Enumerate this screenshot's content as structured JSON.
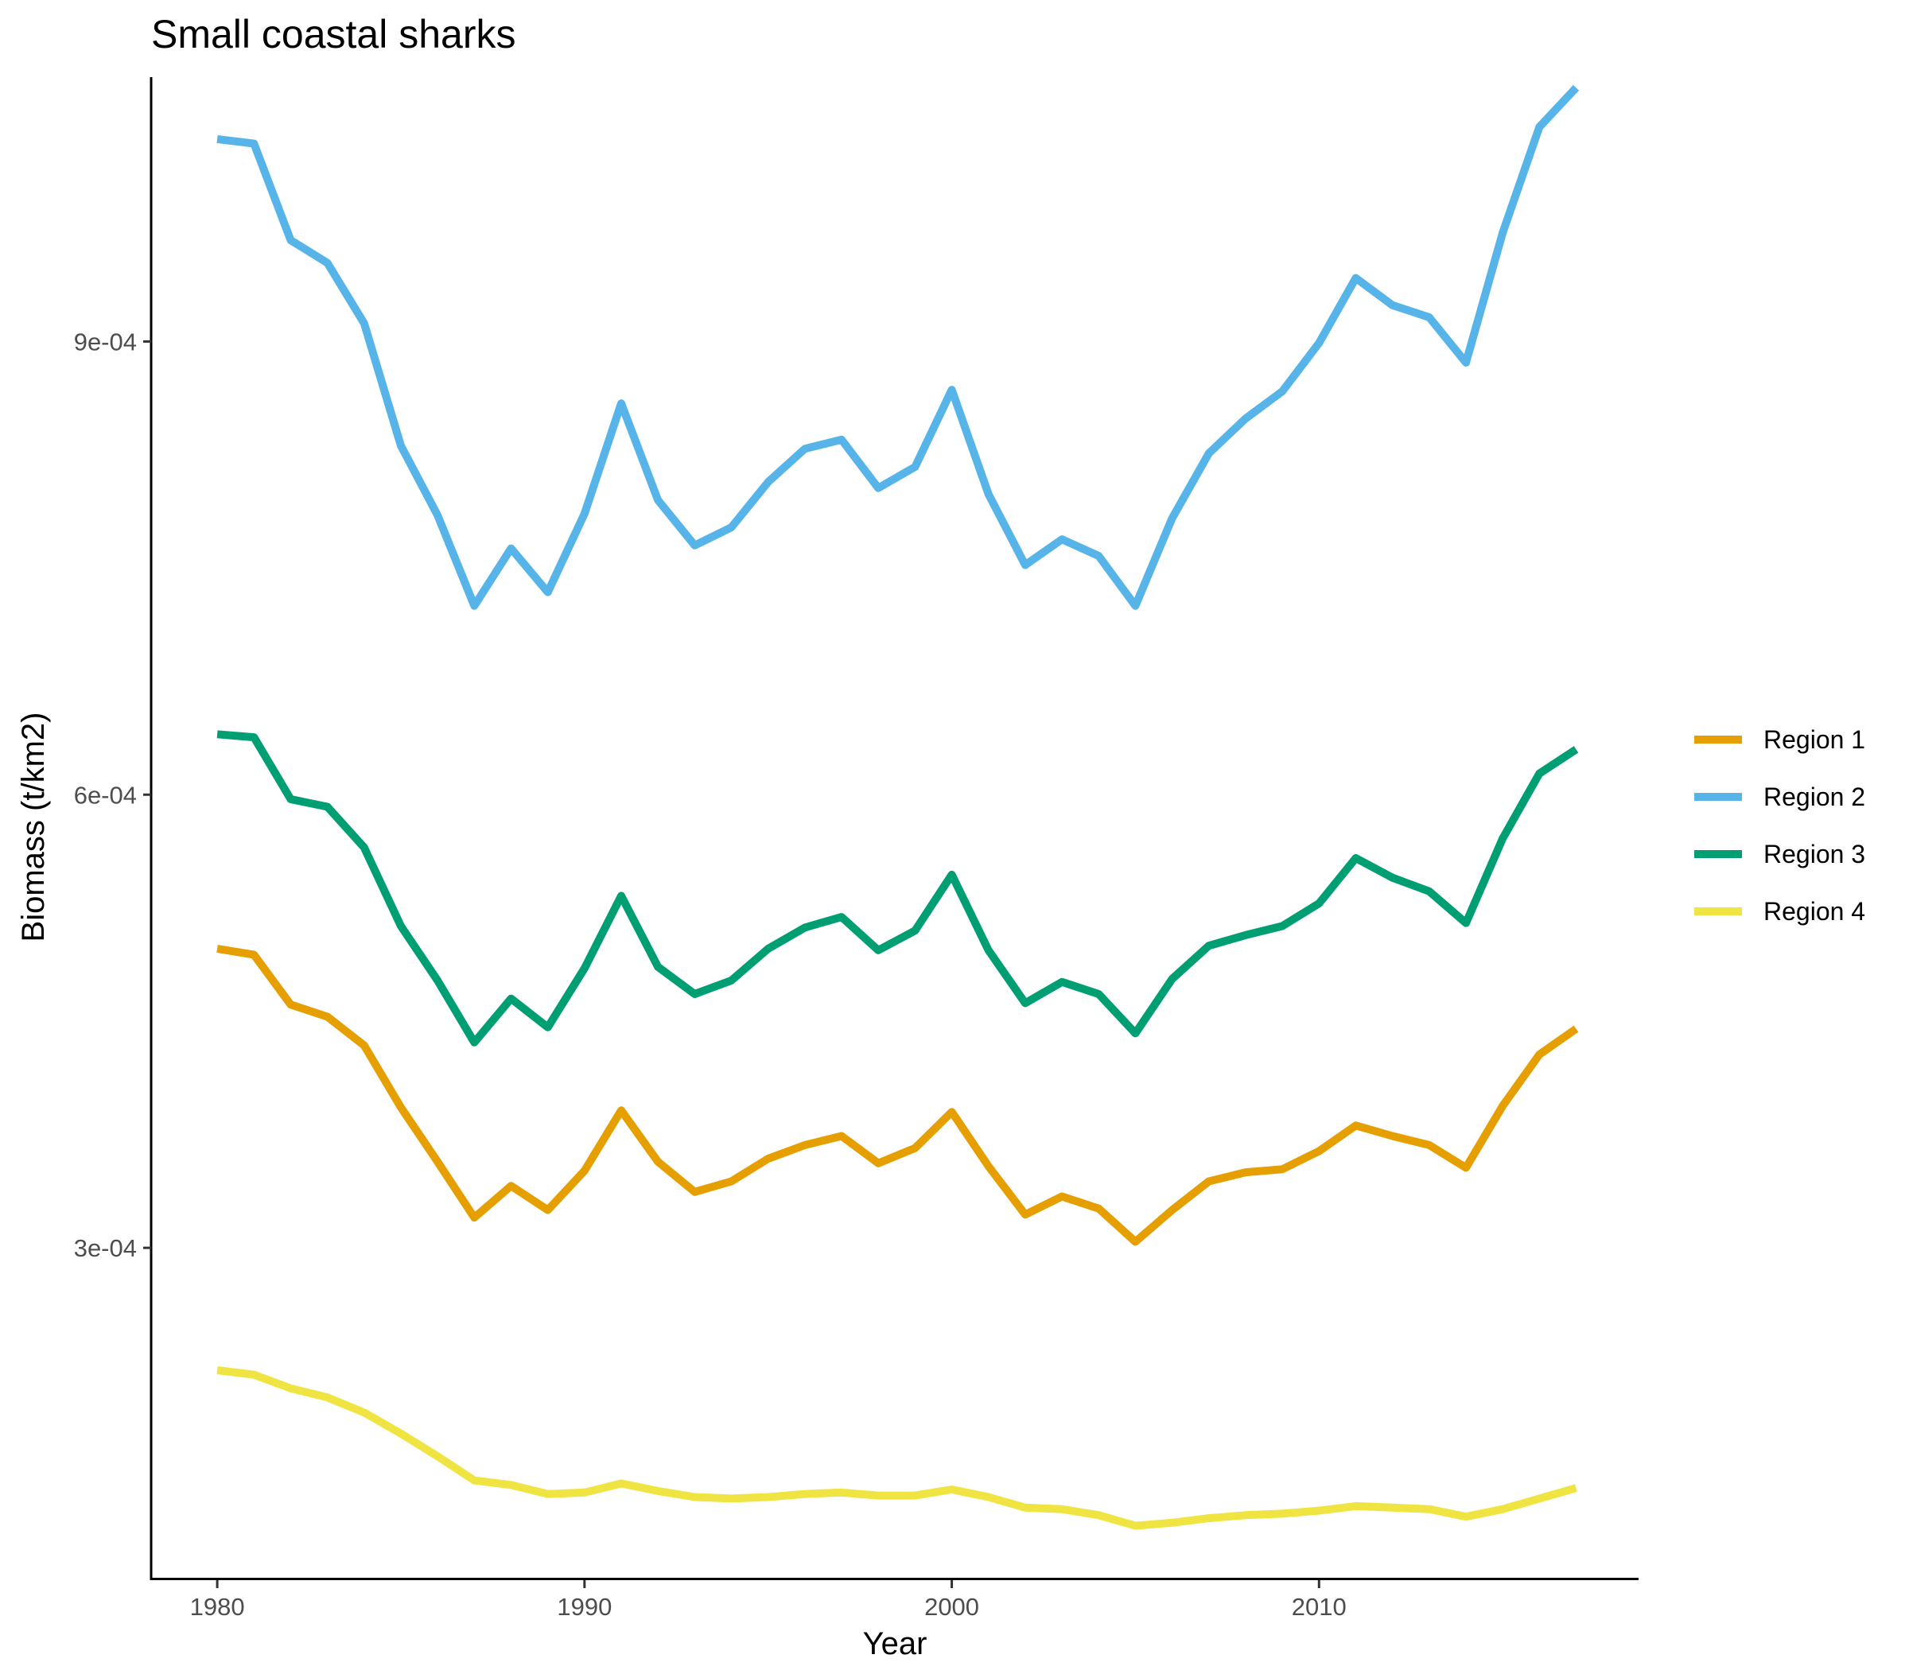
{
  "chart_data": {
    "type": "line",
    "title": "Small coastal sharks",
    "xlabel": "Year",
    "ylabel": "Biomass (t/km2)",
    "xlim": [
      1978.2,
      2018.7
    ],
    "ylim": [
      8e-05,
      0.001075
    ],
    "x_ticks": [
      1980,
      1990,
      2000,
      2010
    ],
    "x_tick_labels": [
      "1980",
      "1990",
      "2000",
      "2010"
    ],
    "y_ticks": [
      0.0003,
      0.0006,
      0.0009
    ],
    "y_tick_labels": [
      "3e-04",
      "6e-04",
      "9e-04"
    ],
    "grid": false,
    "legend": "right",
    "series": [
      {
        "name": "Region 1",
        "color": "#E69F00",
        "points": [
          [
            1980,
            0.000498
          ],
          [
            1981,
            0.000494
          ],
          [
            1982,
            0.000461
          ],
          [
            1983,
            0.000453
          ],
          [
            1984,
            0.000434
          ],
          [
            1985,
            0.000393
          ],
          [
            1986,
            0.000357
          ],
          [
            1987,
            0.00032
          ],
          [
            1988,
            0.000341
          ],
          [
            1989,
            0.000325
          ],
          [
            1990,
            0.000351
          ],
          [
            1991,
            0.000391
          ],
          [
            1992,
            0.000357
          ],
          [
            1993,
            0.000337
          ],
          [
            1994,
            0.000344
          ],
          [
            1995,
            0.000359
          ],
          [
            1996,
            0.000368
          ],
          [
            1997,
            0.000374
          ],
          [
            1998,
            0.000356
          ],
          [
            1999,
            0.000366
          ],
          [
            2000,
            0.00039
          ],
          [
            2001,
            0.000354
          ],
          [
            2002,
            0.000322
          ],
          [
            2003,
            0.000334
          ],
          [
            2004,
            0.000326
          ],
          [
            2005,
            0.000304
          ],
          [
            2006,
            0.000325
          ],
          [
            2007,
            0.000344
          ],
          [
            2008,
            0.00035
          ],
          [
            2009,
            0.000352
          ],
          [
            2010,
            0.000364
          ],
          [
            2011,
            0.000381
          ],
          [
            2012,
            0.000374
          ],
          [
            2013,
            0.000368
          ],
          [
            2014,
            0.000353
          ],
          [
            2015,
            0.000394
          ],
          [
            2016,
            0.000428
          ],
          [
            2017,
            0.000445
          ]
        ]
      },
      {
        "name": "Region 2",
        "color": "#56B4E9",
        "points": [
          [
            1980,
            0.001034
          ],
          [
            1981,
            0.001031
          ],
          [
            1982,
            0.000967
          ],
          [
            1983,
            0.000952
          ],
          [
            1984,
            0.000912
          ],
          [
            1985,
            0.000831
          ],
          [
            1986,
            0.000785
          ],
          [
            1987,
            0.000725
          ],
          [
            1988,
            0.000763
          ],
          [
            1989,
            0.000734
          ],
          [
            1990,
            0.000786
          ],
          [
            1991,
            0.000859
          ],
          [
            1992,
            0.000795
          ],
          [
            1993,
            0.000765
          ],
          [
            1994,
            0.000777
          ],
          [
            1995,
            0.000807
          ],
          [
            1996,
            0.000829
          ],
          [
            1997,
            0.000835
          ],
          [
            1998,
            0.000803
          ],
          [
            1999,
            0.000817
          ],
          [
            2000,
            0.000868
          ],
          [
            2001,
            0.000799
          ],
          [
            2002,
            0.000752
          ],
          [
            2003,
            0.000769
          ],
          [
            2004,
            0.000758
          ],
          [
            2005,
            0.000725
          ],
          [
            2006,
            0.000783
          ],
          [
            2007,
            0.000826
          ],
          [
            2008,
            0.000849
          ],
          [
            2009,
            0.000867
          ],
          [
            2010,
            0.000899
          ],
          [
            2011,
            0.000942
          ],
          [
            2012,
            0.000924
          ],
          [
            2013,
            0.000916
          ],
          [
            2014,
            0.000886
          ],
          [
            2015,
            0.000972
          ],
          [
            2016,
            0.001042
          ],
          [
            2017,
            0.001068
          ]
        ]
      },
      {
        "name": "Region 3",
        "color": "#009E73",
        "points": [
          [
            1980,
            0.00064
          ],
          [
            1981,
            0.000638
          ],
          [
            1982,
            0.000597
          ],
          [
            1983,
            0.000592
          ],
          [
            1984,
            0.000565
          ],
          [
            1985,
            0.000513
          ],
          [
            1986,
            0.000477
          ],
          [
            1987,
            0.000436
          ],
          [
            1988,
            0.000465
          ],
          [
            1989,
            0.000446
          ],
          [
            1990,
            0.000485
          ],
          [
            1991,
            0.000533
          ],
          [
            1992,
            0.000486
          ],
          [
            1993,
            0.000468
          ],
          [
            1994,
            0.000477
          ],
          [
            1995,
            0.000498
          ],
          [
            1996,
            0.000512
          ],
          [
            1997,
            0.000519
          ],
          [
            1998,
            0.000497
          ],
          [
            1999,
            0.00051
          ],
          [
            2000,
            0.000547
          ],
          [
            2001,
            0.000497
          ],
          [
            2002,
            0.000462
          ],
          [
            2003,
            0.000476
          ],
          [
            2004,
            0.000468
          ],
          [
            2005,
            0.000442
          ],
          [
            2006,
            0.000478
          ],
          [
            2007,
            0.0005
          ],
          [
            2008,
            0.000507
          ],
          [
            2009,
            0.000513
          ],
          [
            2010,
            0.000528
          ],
          [
            2011,
            0.000558
          ],
          [
            2012,
            0.000545
          ],
          [
            2013,
            0.000536
          ],
          [
            2014,
            0.000515
          ],
          [
            2015,
            0.000571
          ],
          [
            2016,
            0.000614
          ],
          [
            2017,
            0.00063
          ]
        ]
      },
      {
        "name": "Region 4",
        "color": "#F0E442",
        "points": [
          [
            1980,
            0.000219
          ],
          [
            1981,
            0.000216
          ],
          [
            1982,
            0.000207
          ],
          [
            1983,
            0.000201
          ],
          [
            1984,
            0.000191
          ],
          [
            1985,
            0.000177
          ],
          [
            1986,
            0.000162
          ],
          [
            1987,
            0.000146
          ],
          [
            1988,
            0.000143
          ],
          [
            1989,
            0.000137
          ],
          [
            1990,
            0.000138
          ],
          [
            1991,
            0.000144
          ],
          [
            1992,
            0.000139
          ],
          [
            1993,
            0.000135
          ],
          [
            1994,
            0.000134
          ],
          [
            1995,
            0.000135
          ],
          [
            1996,
            0.000137
          ],
          [
            1997,
            0.000138
          ],
          [
            1998,
            0.000136
          ],
          [
            1999,
            0.000136
          ],
          [
            2000,
            0.00014
          ],
          [
            2001,
            0.000135
          ],
          [
            2002,
            0.000128
          ],
          [
            2003,
            0.000127
          ],
          [
            2004,
            0.000123
          ],
          [
            2005,
            0.000116
          ],
          [
            2006,
            0.000118
          ],
          [
            2007,
            0.000121
          ],
          [
            2008,
            0.000123
          ],
          [
            2009,
            0.000124
          ],
          [
            2010,
            0.000126
          ],
          [
            2011,
            0.000129
          ],
          [
            2012,
            0.000128
          ],
          [
            2013,
            0.000127
          ],
          [
            2014,
            0.000122
          ],
          [
            2015,
            0.000127
          ],
          [
            2016,
            0.000134
          ],
          [
            2017,
            0.000141
          ]
        ]
      }
    ]
  }
}
